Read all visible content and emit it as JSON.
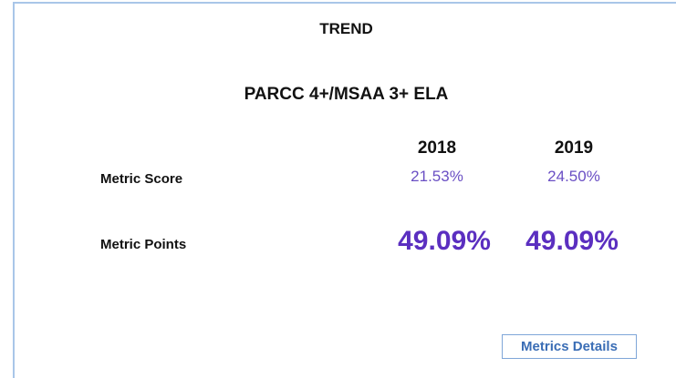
{
  "card": {
    "title": "TREND",
    "subtitle": "PARCC 4+/MSAA 3+ ELA",
    "years": [
      "2018",
      "2019"
    ],
    "rows": [
      {
        "label": "Metric Score",
        "values": [
          "21.53%",
          "24.50%"
        ]
      },
      {
        "label": "Metric Points",
        "values": [
          "49.09%",
          "49.09%"
        ]
      }
    ],
    "button": "Metrics Details"
  }
}
